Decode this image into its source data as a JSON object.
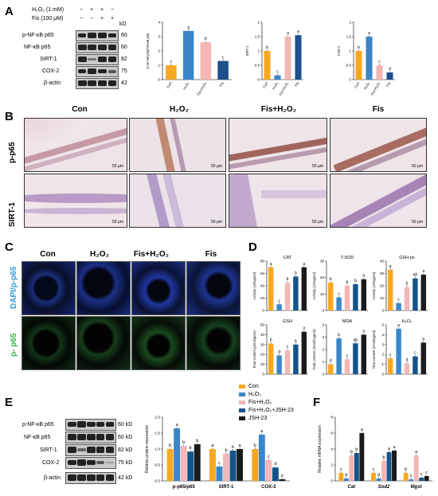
{
  "panels": {
    "A": "A",
    "B": "B",
    "C": "C",
    "D": "D",
    "E": "E",
    "F": "F"
  },
  "colors": {
    "con": "#f7a823",
    "h2o2": "#3a86c8",
    "fis_h2o2": "#f4b6b6",
    "fis": "#1f4f8c",
    "jsh": "#1b1b1b",
    "fis_h2o2_jsh": "#1f4f8c",
    "h2o2_jsh_dark": "#13548a"
  },
  "panel_a": {
    "treat_labels": [
      "H₂O₂ (1 mM)",
      "Fis (100 μM)"
    ],
    "treat_signs": [
      [
        "−",
        "+",
        "+",
        "−"
      ],
      [
        "−",
        "−",
        "+",
        "+"
      ]
    ],
    "kd_header": "kD",
    "proteins": [
      {
        "name": "p-NF-κB p65",
        "kd": "60"
      },
      {
        "name": "NF-κB p65",
        "kd": "60"
      },
      {
        "name": "SIRT-1",
        "kd": "82"
      },
      {
        "name": "COX-2",
        "kd": "75"
      },
      {
        "name": "β-actin",
        "kd": "42"
      }
    ]
  },
  "panel_b": {
    "columns": [
      "Con",
      "H₂O₂",
      "Fis+H₂O₂",
      "Fis"
    ],
    "rows": [
      "p-p65",
      "SIRT-1"
    ],
    "scale": "50 μm"
  },
  "panel_c": {
    "columns": [
      "Con",
      "H₂O₂",
      "Fis+H₂O₂",
      "Fis"
    ],
    "rows": [
      "DAPI/p-p65",
      "p- p65"
    ]
  },
  "panel_e": {
    "proteins": [
      {
        "name": "p-NF-κB p65",
        "kd": "60 kD"
      },
      {
        "name": "NF-κB p65",
        "kd": "60 kD"
      },
      {
        "name": "SIRT-1",
        "kd": "82 kD"
      },
      {
        "name": "COX-2",
        "kd": "75 kD"
      },
      {
        "name": "β-actin",
        "kd": "42 kD"
      }
    ],
    "legend": [
      "Con",
      "H₂O₂",
      "Fis+H₂O₂",
      "Fis+H₂O₂+JSH-23",
      "JSH-23"
    ]
  },
  "chart_data": [
    {
      "id": "A1",
      "type": "bar",
      "categories": [
        "Con",
        "H₂O₂",
        "Fis+H₂O₂",
        "Fis"
      ],
      "values": [
        1.0,
        3.4,
        2.6,
        1.3
      ],
      "letters": [
        "c",
        "a",
        "b",
        "c"
      ],
      "ylabel": "p-NF-κB p65/NF-κB p65",
      "ylim": [
        0,
        4
      ],
      "yticks": [
        0,
        1,
        2,
        3,
        4
      ]
    },
    {
      "id": "A2",
      "type": "bar",
      "categories": [
        "Con",
        "H₂O₂",
        "Fis+H₂O₂",
        "Fis"
      ],
      "values": [
        1.0,
        0.15,
        1.5,
        1.55
      ],
      "letters": [
        "b",
        "c",
        "a",
        "a"
      ],
      "ylabel": "SIRT-1",
      "ylim": [
        0,
        2
      ],
      "yticks": [
        0.0,
        0.5,
        1.0,
        1.5,
        2.0
      ]
    },
    {
      "id": "A3",
      "type": "bar",
      "categories": [
        "Con",
        "H₂O₂",
        "Fis+H₂O₂",
        "Fis"
      ],
      "values": [
        1.0,
        1.5,
        0.5,
        0.25
      ],
      "letters": [
        "b",
        "a",
        "c",
        "d"
      ],
      "ylabel": "COX-2",
      "ylim": [
        0,
        2
      ],
      "yticks": [
        0.0,
        0.5,
        1.0,
        1.5,
        2.0
      ]
    },
    {
      "id": "D1",
      "type": "bar",
      "title": "CAT",
      "ylabel": "Activity (U/mgprot)",
      "ylim": [
        0,
        80
      ],
      "yticks": [
        0,
        20,
        40,
        60,
        80
      ],
      "values": [
        70,
        10,
        45,
        55,
        70
      ],
      "letters": [
        "a",
        "c",
        "b",
        "b",
        "a"
      ]
    },
    {
      "id": "D2",
      "title": "T-SOD",
      "type": "bar",
      "ylabel": "Activity (U/mgprot)",
      "ylim": [
        0,
        30
      ],
      "yticks": [
        0,
        10,
        20,
        30
      ],
      "values": [
        17,
        8,
        15,
        16,
        19
      ],
      "letters": [
        "b",
        "c",
        "b",
        "b",
        "a"
      ]
    },
    {
      "id": "D3",
      "title": "GSH-px",
      "type": "bar",
      "ylabel": "Activity (U/mgprot)",
      "ylim": [
        0,
        40
      ],
      "yticks": [
        0,
        10,
        20,
        30,
        40
      ],
      "values": [
        33,
        6,
        19,
        26,
        29
      ],
      "letters": [
        "a",
        "c",
        "b",
        "ab",
        "a"
      ]
    },
    {
      "id": "D4",
      "title": "GSH",
      "type": "bar",
      "ylabel": "Total content (μmol/gprot)",
      "ylim": [
        0,
        50
      ],
      "yticks": [
        0,
        10,
        20,
        30,
        40,
        50
      ],
      "values": [
        31,
        19,
        24,
        30,
        43
      ],
      "letters": [
        "b",
        "d",
        "c",
        "b",
        "a"
      ]
    },
    {
      "id": "D5",
      "title": "MDA",
      "type": "bar",
      "ylabel": "Total content (nmol/mgprot)",
      "ylim": [
        0,
        4
      ],
      "yticks": [
        0,
        1,
        2,
        3,
        4
      ],
      "values": [
        0.8,
        2.9,
        1.2,
        2.5,
        3.2
      ],
      "letters": [
        "d",
        "b",
        "c",
        "ab",
        "a"
      ]
    },
    {
      "id": "D6",
      "title": "H₂O₂",
      "type": "bar",
      "ylabel": "Total content (mmol/gprot)",
      "ylim": [
        0,
        5
      ],
      "yticks": [
        0,
        1,
        2,
        3,
        4,
        5
      ],
      "values": [
        1.6,
        4.6,
        1.1,
        1.8,
        3.2
      ],
      "letters": [
        "c",
        "a",
        "d",
        "c",
        "b"
      ]
    },
    {
      "id": "E",
      "type": "bar",
      "categories": [
        "p-p65/p65",
        "SIRT-1",
        "COX-2"
      ],
      "ylabel": "Relative protein expression",
      "ylim": [
        0,
        2.0
      ],
      "yticks": [
        0.0,
        0.5,
        1.0,
        1.5,
        2.0
      ],
      "series": [
        {
          "name": "Con",
          "values": [
            1.0,
            1.0,
            1.0
          ],
          "letters": [
            "b",
            "a",
            "b"
          ]
        },
        {
          "name": "H₂O₂",
          "values": [
            1.65,
            0.45,
            1.45
          ],
          "letters": [
            "a",
            "c",
            "a"
          ]
        },
        {
          "name": "Fis+H₂O₂",
          "values": [
            1.1,
            0.85,
            0.65
          ],
          "letters": [
            "b",
            "b",
            "c"
          ]
        },
        {
          "name": "Fis+H₂O₂+JSH-23",
          "values": [
            0.92,
            0.95,
            0.42
          ],
          "letters": [
            "b",
            "b",
            "d"
          ]
        },
        {
          "name": "JSH-23",
          "values": [
            1.15,
            1.0,
            0.05
          ],
          "letters": [
            "b",
            "a",
            "e"
          ]
        }
      ]
    },
    {
      "id": "F",
      "type": "bar",
      "categories": [
        "Cat",
        "Sod2",
        "Mgst"
      ],
      "ylabel": "Relative mRNA expression",
      "ylim": [
        0,
        8
      ],
      "yticks": [
        0,
        2,
        4,
        6,
        8
      ],
      "series": [
        {
          "name": "Con",
          "values": [
            1.0,
            1.0,
            1.0
          ],
          "letters": [
            "c",
            "c",
            "b"
          ]
        },
        {
          "name": "H₂O₂",
          "values": [
            0.3,
            0.3,
            0.2
          ],
          "letters": [
            "d",
            "d",
            "c"
          ]
        },
        {
          "name": "Fis+H₂O₂",
          "values": [
            3.2,
            2.5,
            3.2
          ],
          "letters": [
            "b",
            "b",
            "a"
          ]
        },
        {
          "name": "Fis+H₂O₂+JSH-23",
          "values": [
            3.5,
            3.6,
            0.4
          ],
          "letters": [
            "b",
            "a",
            "c"
          ]
        },
        {
          "name": "JSH-23",
          "values": [
            6.0,
            3.8,
            0.6
          ],
          "letters": [
            "a",
            "a",
            "c"
          ]
        }
      ]
    }
  ]
}
